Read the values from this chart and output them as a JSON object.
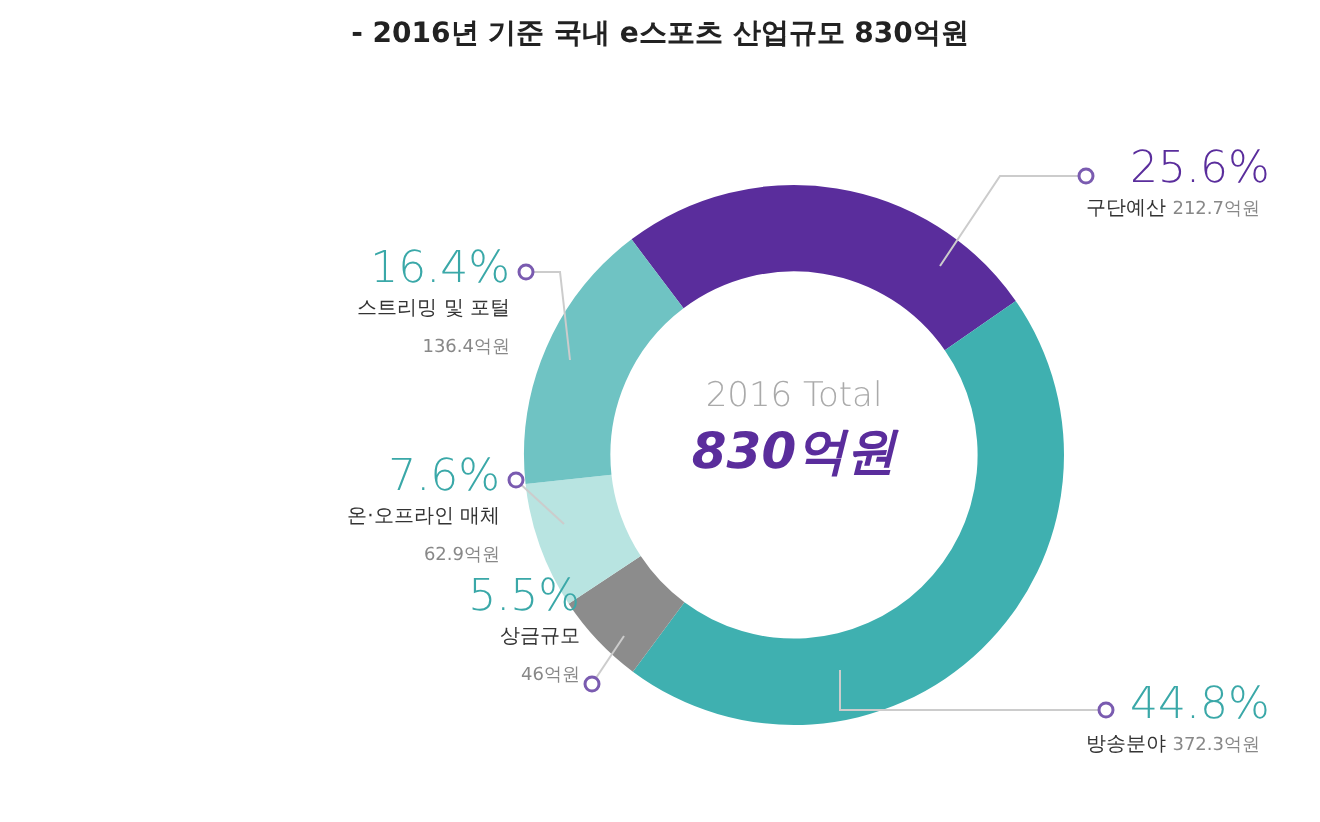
{
  "chart_data": {
    "type": "donut",
    "title": "- 2016년 기준 국내 e스포츠 산업규모 830억원",
    "categories": [
      "구단예산",
      "방송분야",
      "상금규모",
      "온·오프라인 매체",
      "스트리밍 및 포털"
    ],
    "values": [
      212.7,
      372.3,
      46,
      62.9,
      136.4
    ],
    "value_labels": [
      "212.7억원",
      "372.3억원",
      "46억원",
      "62.9억원",
      "136.4억원"
    ],
    "colors": [
      "#5a2d9c",
      "#3fb0b0",
      "#8c8c8c",
      "#b8e4e1",
      "#6fc3c3"
    ],
    "annotations": [
      {
        "text": "25.6%",
        "x": "구단예산"
      },
      {
        "text": "44.8%",
        "x": "방송분야"
      },
      {
        "text": "5.5%",
        "x": "상금규모"
      },
      {
        "text": "7.6%",
        "x": "온·오프라인 매체"
      },
      {
        "text": "16.4%",
        "x": "스트리밍 및 포털"
      },
      "2016 Total",
      "830억원"
    ],
    "legend": false
  }
}
